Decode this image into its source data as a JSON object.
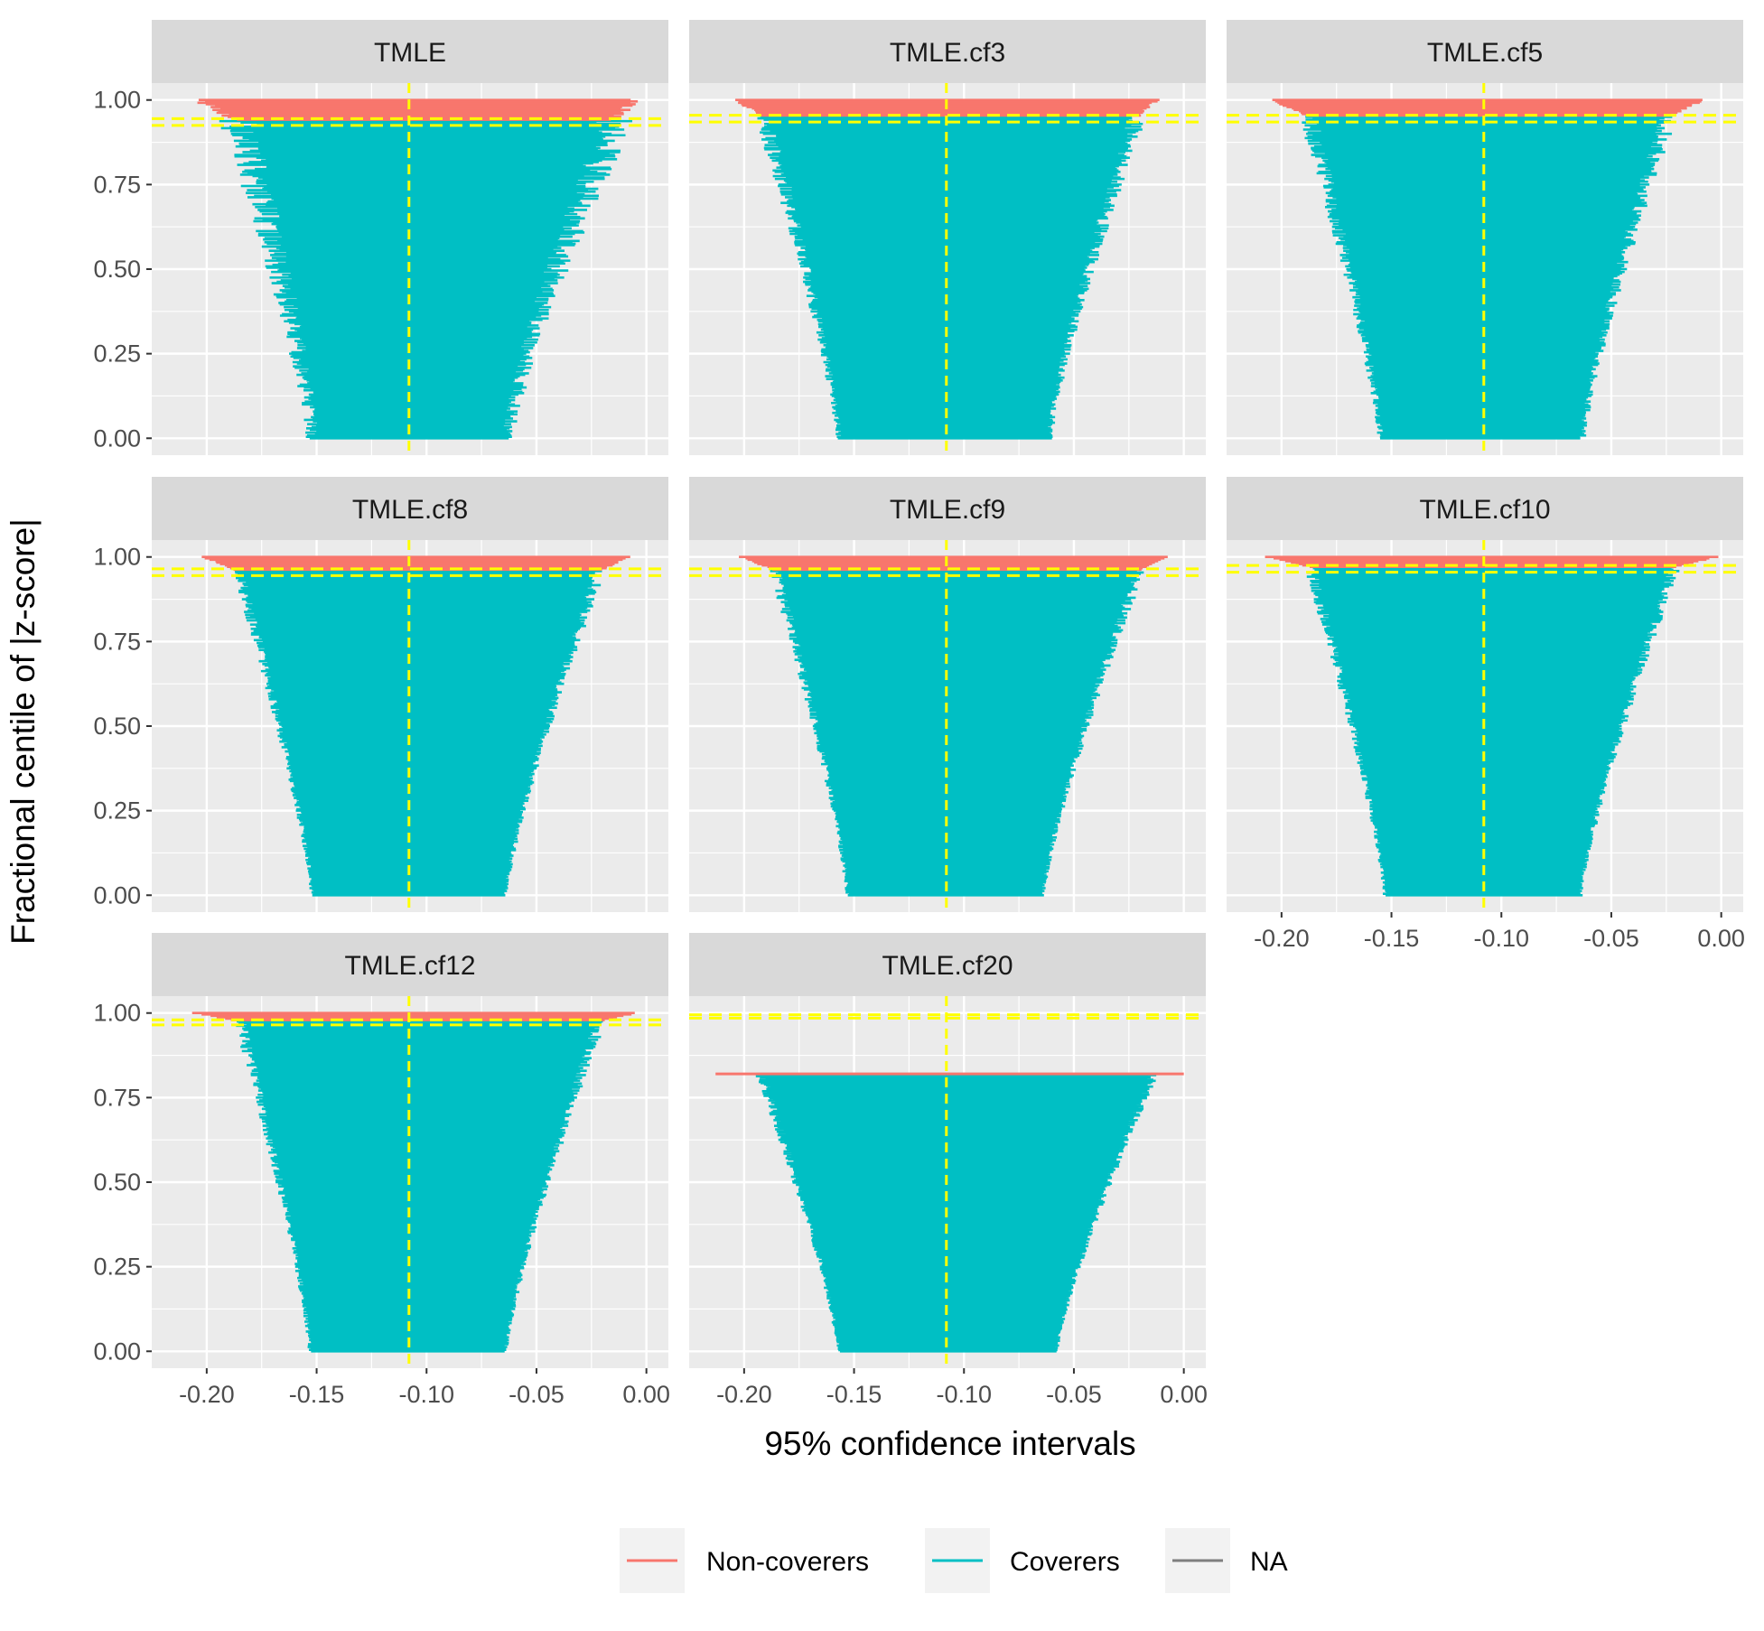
{
  "chart_data": {
    "type": "ci-caterpillar",
    "xlabel": "95% confidence intervals",
    "ylabel": "Fractional centile of |z-score|",
    "xlim": [
      -0.225,
      0.01
    ],
    "ylim": [
      -0.05,
      1.05
    ],
    "x_ticks": [
      -0.2,
      -0.15,
      -0.1,
      -0.05,
      0.0
    ],
    "x_tick_labels": [
      "-0.20",
      "-0.15",
      "-0.10",
      "-0.05",
      "0.00"
    ],
    "y_ticks": [
      0.0,
      0.25,
      0.5,
      0.75,
      1.0
    ],
    "y_tick_labels": [
      "0.00",
      "0.25",
      "0.50",
      "0.75",
      "1.00"
    ],
    "grid": true,
    "reference_line_x": -0.108,
    "legend": {
      "position": "bottom",
      "entries": [
        {
          "label": "Non-coverers",
          "color": "#F8766D"
        },
        {
          "label": "Coverers",
          "color": "#00BFC4"
        },
        {
          "label": "NA",
          "color": "#7F7F7F"
        }
      ]
    },
    "panels": [
      {
        "name": "TMLE",
        "coverage_lines": [
          0.925,
          0.945
        ],
        "top_centile": 1.0,
        "bottom_interval": [
          -0.152,
          -0.063
        ],
        "top_cover_interval": [
          -0.186,
          -0.014
        ],
        "top_noncover_interval": [
          -0.204,
          -0.006
        ],
        "noise": 0.006
      },
      {
        "name": "TMLE.cf3",
        "coverage_lines": [
          0.935,
          0.955
        ],
        "top_centile": 1.0,
        "bottom_interval": [
          -0.157,
          -0.061
        ],
        "top_cover_interval": [
          -0.191,
          -0.021
        ],
        "top_noncover_interval": [
          -0.204,
          -0.012
        ],
        "noise": 0.003
      },
      {
        "name": "TMLE.cf5",
        "coverage_lines": [
          0.935,
          0.955
        ],
        "top_centile": 1.0,
        "bottom_interval": [
          -0.155,
          -0.063
        ],
        "top_cover_interval": [
          -0.188,
          -0.024
        ],
        "top_noncover_interval": [
          -0.204,
          -0.008
        ],
        "noise": 0.003
      },
      {
        "name": "TMLE.cf8",
        "coverage_lines": [
          0.945,
          0.965
        ],
        "top_centile": 1.0,
        "bottom_interval": [
          -0.152,
          -0.064
        ],
        "top_cover_interval": [
          -0.186,
          -0.021
        ],
        "top_noncover_interval": [
          -0.202,
          -0.008
        ],
        "noise": 0.002
      },
      {
        "name": "TMLE.cf9",
        "coverage_lines": [
          0.945,
          0.965
        ],
        "top_centile": 1.0,
        "bottom_interval": [
          -0.153,
          -0.064
        ],
        "top_cover_interval": [
          -0.186,
          -0.02
        ],
        "top_noncover_interval": [
          -0.202,
          -0.007
        ],
        "noise": 0.002
      },
      {
        "name": "TMLE.cf10",
        "coverage_lines": [
          0.955,
          0.975
        ],
        "top_centile": 1.0,
        "bottom_interval": [
          -0.153,
          -0.064
        ],
        "top_cover_interval": [
          -0.187,
          -0.021
        ],
        "top_noncover_interval": [
          -0.207,
          -0.002
        ],
        "noise": 0.002
      },
      {
        "name": "TMLE.cf12",
        "coverage_lines": [
          0.965,
          0.98
        ],
        "top_centile": 1.0,
        "bottom_interval": [
          -0.153,
          -0.064
        ],
        "top_cover_interval": [
          -0.185,
          -0.021
        ],
        "top_noncover_interval": [
          -0.206,
          -0.005
        ],
        "noise": 0.002
      },
      {
        "name": "TMLE.cf20",
        "coverage_lines": [
          0.985,
          0.995
        ],
        "top_centile": 0.82,
        "bottom_interval": [
          -0.157,
          -0.058
        ],
        "top_cover_interval": [
          -0.202,
          -0.002
        ],
        "top_noncover_interval": [
          -0.213,
          0.0
        ],
        "noise": 0.002
      }
    ]
  }
}
